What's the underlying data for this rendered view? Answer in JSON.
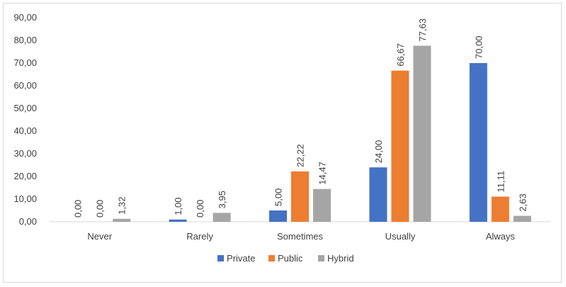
{
  "chart_data": {
    "type": "bar",
    "title": "",
    "xlabel": "",
    "ylabel": "",
    "categories": [
      "Never",
      "Rarely",
      "Sometimes",
      "Usually",
      "Always"
    ],
    "series": [
      {
        "name": "Private",
        "color": "#4472c4",
        "values": [
          0.0,
          1.0,
          5.0,
          24.0,
          70.0
        ],
        "labels": [
          "0,00",
          "1,00",
          "5,00",
          "24,00",
          "70,00"
        ]
      },
      {
        "name": "Public",
        "color": "#ed7d31",
        "values": [
          0.0,
          0.0,
          22.22,
          66.67,
          11.11
        ],
        "labels": [
          "0,00",
          "0,00",
          "22,22",
          "66,67",
          "11,11"
        ]
      },
      {
        "name": "Hybrid",
        "color": "#a5a5a5",
        "values": [
          1.32,
          3.95,
          14.47,
          77.63,
          2.63
        ],
        "labels": [
          "1,32",
          "3,95",
          "14,47",
          "77,63",
          "2,63"
        ]
      }
    ],
    "ylim": [
      0,
      90
    ],
    "yticks": [
      0,
      10,
      20,
      30,
      40,
      50,
      60,
      70,
      80,
      90
    ],
    "ytick_labels": [
      "0,00",
      "10,00",
      "20,00",
      "30,00",
      "40,00",
      "50,00",
      "60,00",
      "70,00",
      "80,00",
      "90,00"
    ],
    "grid": false,
    "legend_position": "bottom",
    "data_label_orientation": "vertical"
  }
}
